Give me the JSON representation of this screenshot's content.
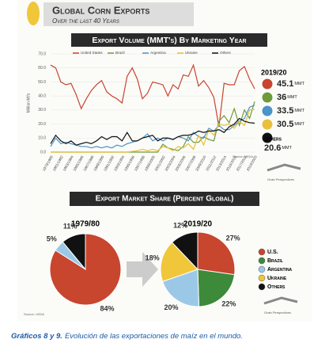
{
  "header": {
    "title": "Global Corn Exports",
    "subtitle": "Over the last 40 Years"
  },
  "chart_data": [
    {
      "type": "line",
      "title": "Export Volume (MMT's) By Marketing Year",
      "y_label": "Million Mt's",
      "source": "Source: USDA",
      "categories": [
        "1979/1980",
        null,
        "1981/1982",
        null,
        "1983/1984",
        null,
        "1985/1986",
        null,
        "1987/1988",
        null,
        "1989/1990",
        null,
        "1991/1992",
        null,
        "1993/1994",
        null,
        "1995/1996",
        null,
        "1997/1998",
        null,
        "1999/2000",
        null,
        "2001/2002",
        null,
        "2003/2004",
        null,
        "2005/2006",
        null,
        "2007/2008",
        null,
        "2009/2010",
        null,
        "2011/2012",
        null,
        "2013/2014",
        null,
        "2015/2016",
        null,
        "2017/2018",
        null,
        "2019/2020"
      ],
      "ylim": [
        0,
        70
      ],
      "yticks": [
        {
          "value": 0,
          "label": "0.0"
        },
        {
          "value": 10,
          "label": "10.0"
        },
        {
          "value": 20,
          "label": "20.0"
        },
        {
          "value": 30,
          "label": "30.0"
        },
        {
          "value": 40,
          "label": "40.0"
        },
        {
          "value": 50,
          "label": "50.0"
        },
        {
          "value": 60,
          "label": "60.0"
        },
        {
          "value": 70,
          "label": "70.0"
        }
      ],
      "series": [
        {
          "name": "United States",
          "color": "#c8452e",
          "values": [
            62,
            60,
            50,
            48,
            49,
            41,
            31,
            38,
            44,
            48,
            51,
            43,
            40,
            38,
            35,
            54,
            60,
            52,
            38,
            42,
            50,
            49,
            48,
            40,
            48,
            45,
            55,
            54,
            62,
            47,
            51,
            46,
            39,
            18,
            49,
            48,
            48,
            58,
            61,
            52,
            45.1
          ]
        },
        {
          "name": "Brazil",
          "color": "#6e9a3c",
          "values": [
            0,
            0,
            0,
            0,
            0,
            0,
            0,
            0,
            0,
            0,
            0,
            0,
            0,
            0,
            0,
            0,
            0,
            0,
            0,
            0,
            0,
            0,
            5.6,
            3,
            2,
            1,
            4,
            11,
            7,
            7,
            11,
            9,
            8,
            22,
            26,
            21,
            31,
            19,
            30,
            24,
            36
          ]
        },
        {
          "name": "Argentina",
          "color": "#4b93c9",
          "values": [
            4,
            10,
            6,
            7,
            6,
            5,
            4,
            4,
            3,
            4,
            3,
            4,
            3,
            5,
            4,
            6,
            7,
            8,
            10,
            13,
            8,
            10,
            8,
            10,
            9,
            11,
            10,
            8,
            14,
            11,
            10,
            17,
            15,
            19,
            16,
            16,
            19,
            22,
            24,
            32,
            33.5
          ]
        },
        {
          "name": "Ukraine",
          "color": "#e9bf3c",
          "values": [
            0,
            0,
            0,
            0,
            0,
            0,
            0,
            0,
            0,
            0,
            0,
            0,
            0,
            0,
            0,
            0,
            0.5,
            1,
            2,
            1,
            2,
            1,
            4,
            3,
            1,
            4,
            3,
            6,
            2,
            12,
            5,
            16,
            12,
            20,
            19,
            20,
            17,
            22,
            19,
            30,
            30.5
          ]
        },
        {
          "name": "Others",
          "color": "#111111",
          "values": [
            6,
            12,
            8,
            6,
            8,
            5,
            6,
            7,
            6,
            8,
            11,
            9,
            11,
            11,
            8,
            14,
            8,
            8,
            10,
            11,
            12,
            8,
            10,
            10,
            9,
            11,
            12,
            12,
            13,
            15,
            14,
            15,
            15,
            16,
            14,
            18,
            20,
            24,
            22,
            21,
            20.6
          ]
        }
      ]
    },
    {
      "type": "pie",
      "title": "1979/80",
      "categories": [
        "U.S.",
        "Argentina",
        "Others"
      ],
      "colors": [
        "#c8452e",
        "#9cc8e8",
        "#111111"
      ],
      "values": [
        84,
        5,
        11
      ],
      "value_labels": [
        "84%",
        "5%",
        "11%"
      ]
    },
    {
      "type": "pie",
      "title": "2019/20",
      "categories": [
        "U.S.",
        "Brazil",
        "Argentina",
        "Ukraine",
        "Others"
      ],
      "colors": [
        "#c8452e",
        "#3d8a3a",
        "#9cc8e8",
        "#f0c63a",
        "#111111"
      ],
      "values": [
        27,
        22,
        20,
        18,
        12
      ],
      "value_labels": [
        "27%",
        "22%",
        "20%",
        "18%",
        "12%"
      ]
    }
  ],
  "summary": {
    "title": "2019/20",
    "values": [
      45.1,
      36,
      33.5,
      30.5,
      20.6
    ],
    "unit": "MMT",
    "others_label": "Others"
  },
  "share_title": "Export Market Share (Percent Global)",
  "share_source": "Source: USDA",
  "brand": "Grain Perspectives",
  "caption": {
    "lead": "Gráficos 8 y 9.",
    "text": "Evolución de las exportaciones de maíz en el mundo."
  }
}
